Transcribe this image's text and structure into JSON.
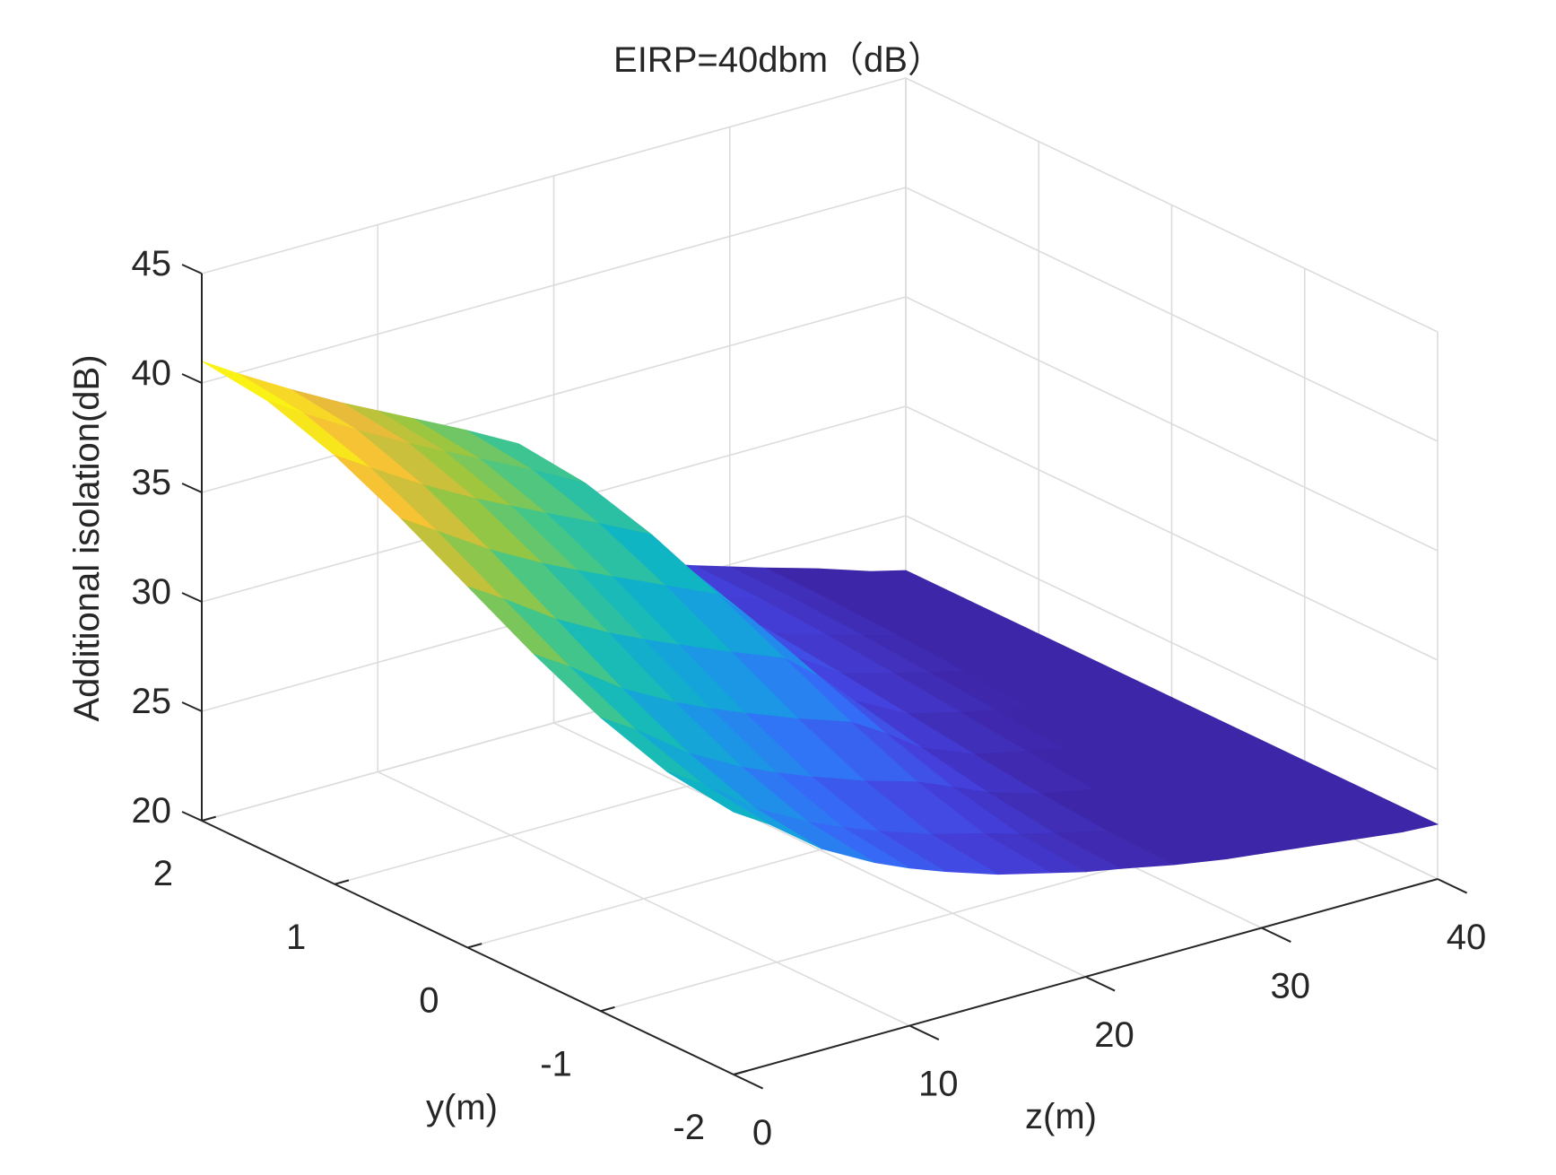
{
  "chart_data": {
    "type": "surface",
    "title": "EIRP=40dbm（dB）",
    "xlabel": "z(m)",
    "ylabel": "y(m)",
    "zlabel": "Additional isolation(dB)",
    "x_axis": {
      "name": "z",
      "range": [
        0,
        40
      ],
      "ticks": [
        0,
        10,
        20,
        30,
        40
      ]
    },
    "y_axis": {
      "name": "y",
      "range": [
        -2,
        2
      ],
      "ticks": [
        -2,
        -1,
        0,
        1,
        2
      ]
    },
    "z_axis": {
      "name": "isolation",
      "range": [
        20,
        45
      ],
      "ticks": [
        20,
        25,
        30,
        35,
        40,
        45
      ]
    },
    "grid": true,
    "colormap": "parula",
    "color_range": [
      24,
      40
    ],
    "surface": {
      "z_points": [
        0,
        2,
        5,
        8,
        10,
        12,
        15,
        18,
        20,
        22,
        25,
        28,
        30,
        32,
        35,
        38,
        40
      ],
      "y_points": [
        -2,
        -1.5,
        -1,
        -0.5,
        0,
        0.5,
        1,
        1.5,
        2
      ],
      "edge_y_minus2": [
        32.0,
        31.0,
        29.2,
        27.9,
        27.2,
        26.6,
        25.8,
        25.2,
        24.8,
        24.5,
        24.0,
        23.6,
        23.4,
        23.2,
        22.9,
        22.6,
        22.5
      ],
      "edge_y_plus2": [
        41.0,
        40.0,
        38.6,
        37.3,
        36.5,
        35.7,
        34.5,
        33.2,
        31.0,
        28.2,
        26.2,
        25.4,
        24.9,
        24.4,
        23.7,
        22.9,
        22.5
      ]
    }
  }
}
